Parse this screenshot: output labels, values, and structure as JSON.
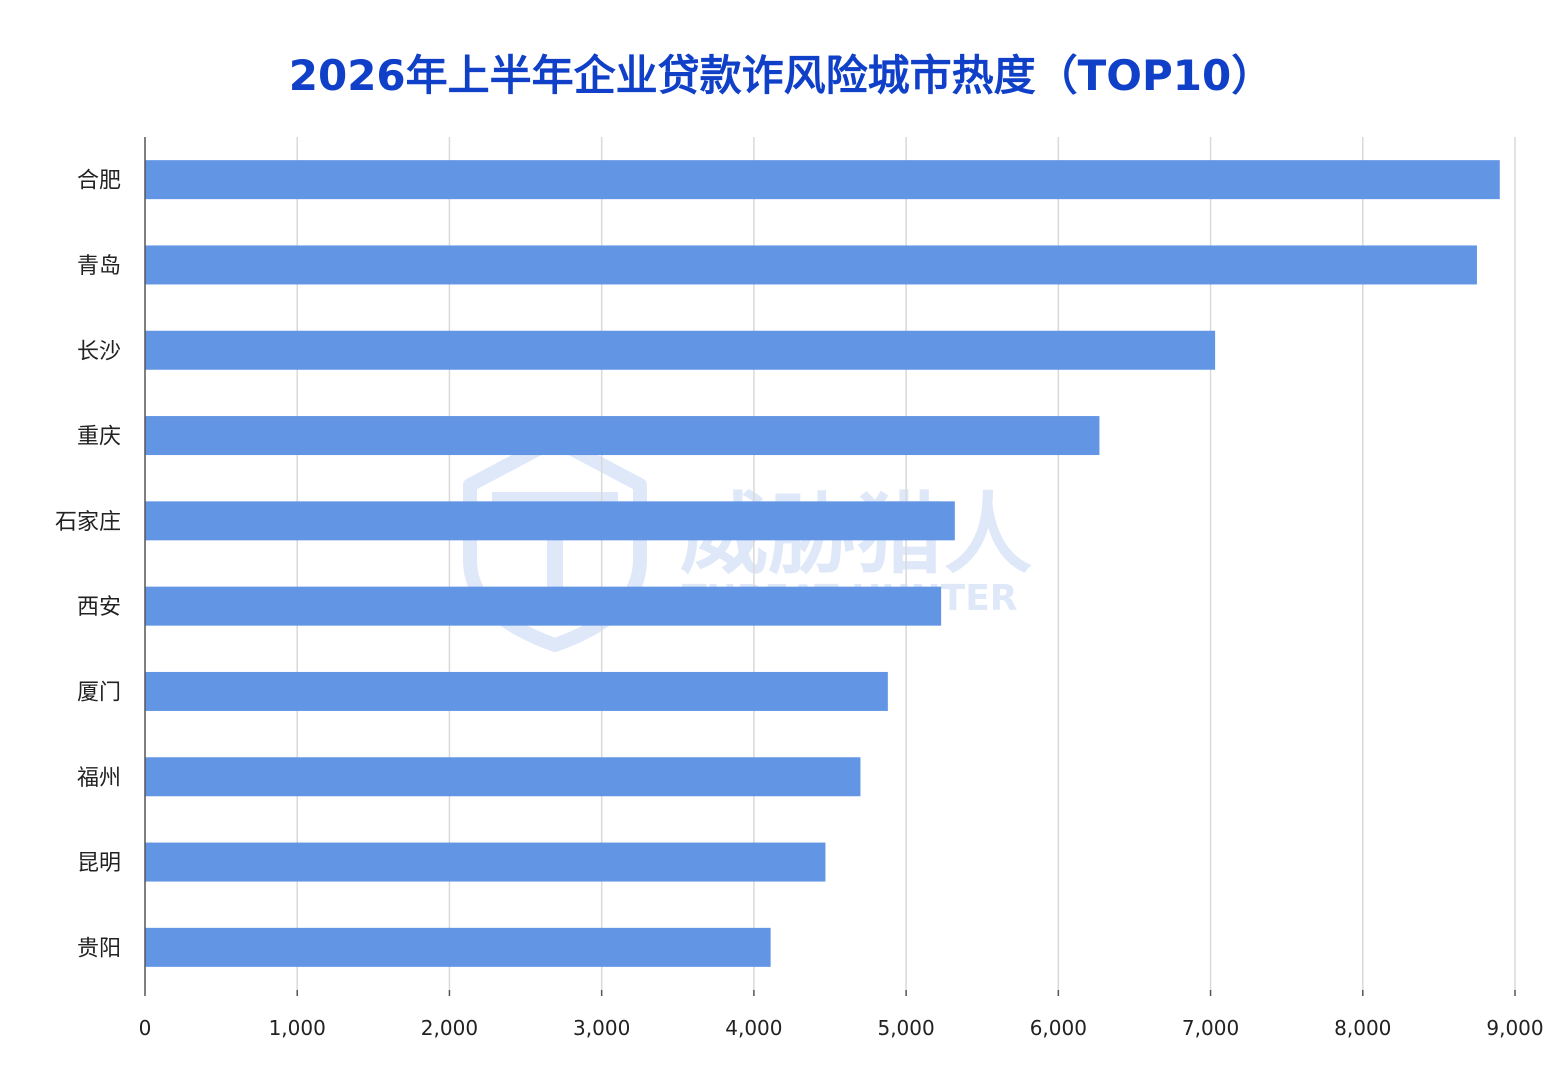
{
  "colors": {
    "title": "#1040c8",
    "bar": "#6296e4",
    "grid": "#d9d9d9",
    "axis": "#555555",
    "watermark": "#dfe8f8"
  },
  "watermark": {
    "logo_icon": "threat-hunter-shield-logo",
    "cn": "威胁猎人",
    "en": "THREAT HUNTER"
  },
  "chart_data": {
    "type": "bar",
    "orientation": "horizontal",
    "title": "2026年上半年企业贷款诈风险城市热度（TOP10）",
    "xlabel": "",
    "ylabel": "",
    "categories": [
      "合肥",
      "青岛",
      "长沙",
      "重庆",
      "石家庄",
      "西安",
      "厦门",
      "福州",
      "昆明",
      "贵阳"
    ],
    "values": [
      8900,
      8750,
      7030,
      6270,
      5320,
      5230,
      4880,
      4700,
      4470,
      4110
    ],
    "xlim": [
      0,
      9000
    ],
    "xticks": [
      0,
      1000,
      2000,
      3000,
      4000,
      5000,
      6000,
      7000,
      8000,
      9000
    ],
    "xtick_labels": [
      "0",
      "1,000",
      "2,000",
      "3,000",
      "4,000",
      "5,000",
      "6,000",
      "7,000",
      "8,000",
      "9,000"
    ],
    "grid": "vertical",
    "legend": "none"
  }
}
